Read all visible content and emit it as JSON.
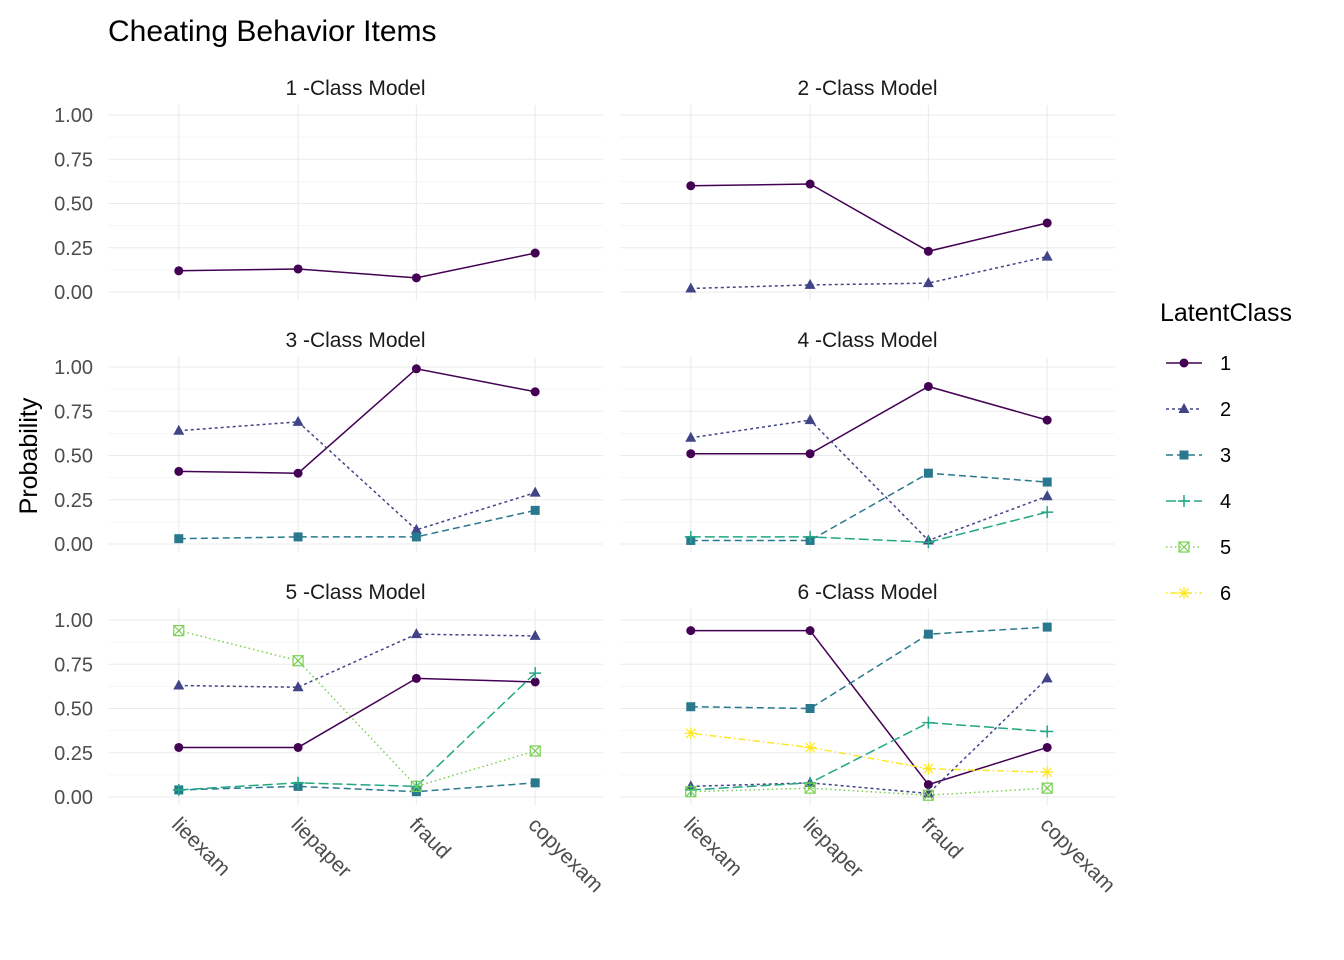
{
  "chart_data": {
    "type": "line",
    "title": "Cheating Behavior Items",
    "xlabel": "",
    "ylabel": "Probability",
    "ylim": [
      0,
      1
    ],
    "yticks": [
      "0.00",
      "0.25",
      "0.50",
      "0.75",
      "1.00"
    ],
    "categories": [
      "lieexam",
      "liepaper",
      "fraud",
      "copyexam"
    ],
    "grid": true,
    "facet_layout": "3 rows x 2 columns",
    "legend": {
      "title": "LatentClass",
      "position": "right",
      "entries": [
        "1",
        "2",
        "3",
        "4",
        "5",
        "6"
      ]
    },
    "series_styles": [
      {
        "class": "1",
        "color": "#440154",
        "shape": "circle",
        "dash": "solid"
      },
      {
        "class": "2",
        "color": "#414487",
        "shape": "triangle",
        "dash": "short-dash"
      },
      {
        "class": "3",
        "color": "#2A788E",
        "shape": "square",
        "dash": "dash"
      },
      {
        "class": "4",
        "color": "#22A884",
        "shape": "plus",
        "dash": "long-dash"
      },
      {
        "class": "5",
        "color": "#7AD151",
        "shape": "square-x",
        "dash": "dotted"
      },
      {
        "class": "6",
        "color": "#FDE725",
        "shape": "asterisk",
        "dash": "dot-dash"
      }
    ],
    "panels": [
      {
        "strip": "1 -Class Model",
        "series": [
          {
            "class": "1",
            "values": [
              0.12,
              0.13,
              0.08,
              0.22
            ]
          }
        ]
      },
      {
        "strip": "2 -Class Model",
        "series": [
          {
            "class": "1",
            "values": [
              0.6,
              0.61,
              0.23,
              0.39
            ]
          },
          {
            "class": "2",
            "values": [
              0.02,
              0.04,
              0.05,
              0.2
            ]
          }
        ]
      },
      {
        "strip": "3 -Class Model",
        "series": [
          {
            "class": "1",
            "values": [
              0.41,
              0.4,
              0.99,
              0.86
            ]
          },
          {
            "class": "2",
            "values": [
              0.64,
              0.69,
              0.08,
              0.29
            ]
          },
          {
            "class": "3",
            "values": [
              0.03,
              0.04,
              0.04,
              0.19
            ]
          }
        ]
      },
      {
        "strip": "4 -Class Model",
        "series": [
          {
            "class": "1",
            "values": [
              0.51,
              0.51,
              0.89,
              0.7
            ]
          },
          {
            "class": "2",
            "values": [
              0.6,
              0.7,
              0.02,
              0.27
            ]
          },
          {
            "class": "3",
            "values": [
              0.02,
              0.02,
              0.4,
              0.35
            ]
          },
          {
            "class": "4",
            "values": [
              0.04,
              0.04,
              0.01,
              0.18
            ]
          }
        ]
      },
      {
        "strip": "5 -Class Model",
        "series": [
          {
            "class": "1",
            "values": [
              0.28,
              0.28,
              0.67,
              0.65
            ]
          },
          {
            "class": "2",
            "values": [
              0.63,
              0.62,
              0.92,
              0.91
            ]
          },
          {
            "class": "3",
            "values": [
              0.04,
              0.06,
              0.03,
              0.08
            ]
          },
          {
            "class": "4",
            "values": [
              0.04,
              0.08,
              0.06,
              0.7
            ]
          },
          {
            "class": "5",
            "values": [
              0.94,
              0.77,
              0.06,
              0.26
            ]
          }
        ]
      },
      {
        "strip": "6 -Class Model",
        "series": [
          {
            "class": "1",
            "values": [
              0.94,
              0.94,
              0.07,
              0.28
            ]
          },
          {
            "class": "2",
            "values": [
              0.06,
              0.08,
              0.02,
              0.67
            ]
          },
          {
            "class": "3",
            "values": [
              0.51,
              0.5,
              0.92,
              0.96
            ]
          },
          {
            "class": "4",
            "values": [
              0.04,
              0.08,
              0.42,
              0.37
            ]
          },
          {
            "class": "5",
            "values": [
              0.03,
              0.05,
              0.01,
              0.05
            ]
          },
          {
            "class": "6",
            "values": [
              0.36,
              0.28,
              0.16,
              0.14
            ]
          }
        ]
      }
    ]
  }
}
